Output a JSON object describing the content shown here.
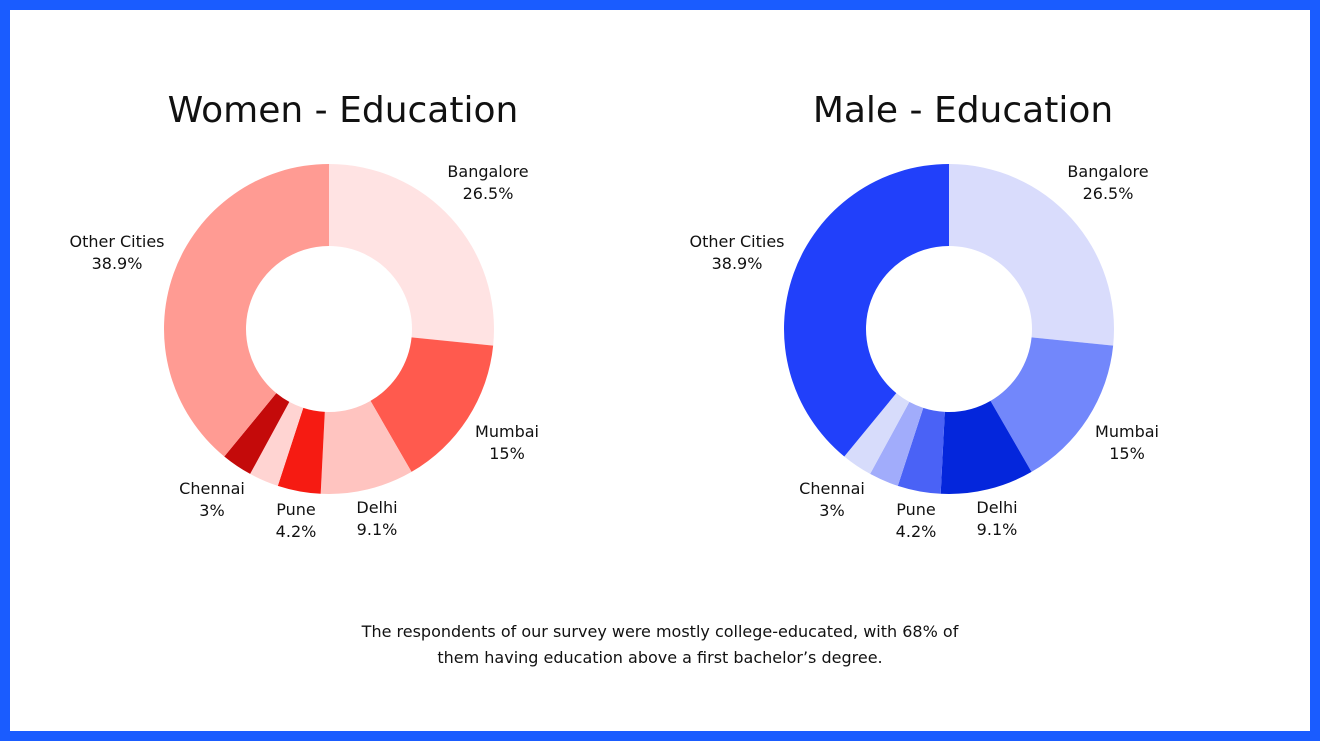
{
  "chart_data": [
    {
      "type": "pie",
      "title": "Women - Education",
      "donut": true,
      "categories": [
        "Bangalore",
        "Mumbai",
        "Delhi",
        "Pune",
        "Chennai",
        "Other Cities"
      ],
      "values": [
        26.5,
        15,
        9.1,
        4.2,
        3,
        38.9
      ],
      "value_labels": [
        "26.5%",
        "15%",
        "9.1%",
        "4.2%",
        "3%",
        "38.9%"
      ],
      "colors": [
        "#ffe3e3",
        "#ff5a4e",
        "#ffc4c0",
        "#f61b12",
        "#ffd4d2",
        "#c40a0a",
        "#ff9b93"
      ]
    },
    {
      "type": "pie",
      "title": "Male - Education",
      "donut": true,
      "categories": [
        "Bangalore",
        "Mumbai",
        "Delhi",
        "Pune",
        "Chennai",
        "Other Cities"
      ],
      "values": [
        26.5,
        15,
        9.1,
        4.2,
        3,
        38.9
      ],
      "value_labels": [
        "26.5%",
        "15%",
        "9.1%",
        "4.2%",
        "3%",
        "38.9%"
      ],
      "colors": [
        "#d9dcfc",
        "#7287fb",
        "#0426dc",
        "#4a62f6",
        "#a1acfb",
        "#d7dcfb",
        "#2140fa"
      ]
    }
  ],
  "caption": {
    "line1": "The respondents of our survey were mostly college-educated, with 68% of",
    "line2": "them having education above a first bachelor’s degree."
  },
  "colors": {
    "frame": "#1a5cff",
    "background": "#ffffff"
  }
}
